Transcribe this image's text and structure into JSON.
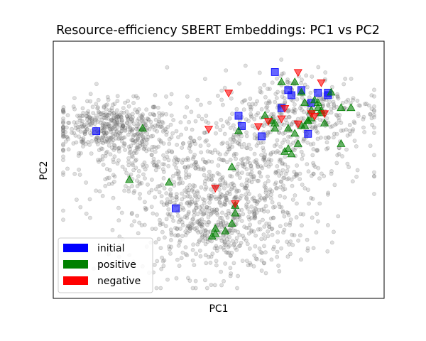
{
  "chart_data": {
    "type": "scatter",
    "title": "Resource-efficiency SBERT Embeddings: PC1 vs PC2",
    "xlabel": "PC1",
    "ylabel": "PC2",
    "xlim": [
      0,
      100
    ],
    "ylim": [
      0,
      100
    ],
    "ticks_shown": false,
    "grid": false,
    "legend_position": "lower-left",
    "legend": [
      {
        "label": "initial",
        "color": "#0000ff"
      },
      {
        "label": "positive",
        "color": "#008000"
      },
      {
        "label": "negative",
        "color": "#ff0000"
      }
    ],
    "background": {
      "name": "all embeddings",
      "color": "#808080",
      "marker": "circle",
      "clusters": [
        {
          "center": [
            17,
            67
          ],
          "spread": [
            9,
            5
          ],
          "count": 380
        },
        {
          "center": [
            27,
            57
          ],
          "spread": [
            12,
            9
          ],
          "count": 260
        },
        {
          "center": [
            49,
            29
          ],
          "spread": [
            13,
            10
          ],
          "count": 600
        },
        {
          "center": [
            58,
            52
          ],
          "spread": [
            15,
            11
          ],
          "count": 420
        },
        {
          "center": [
            75,
            73
          ],
          "spread": [
            12,
            8
          ],
          "count": 340
        }
      ]
    },
    "series": [
      {
        "name": "initial",
        "marker": "square",
        "color": "#0000ff",
        "points": [
          [
            13,
            65
          ],
          [
            37,
            35
          ],
          [
            56,
            71
          ],
          [
            57,
            67
          ],
          [
            63,
            63
          ],
          [
            67,
            88
          ],
          [
            71,
            81
          ],
          [
            72,
            79
          ],
          [
            69,
            74
          ],
          [
            75,
            81
          ],
          [
            78,
            76
          ],
          [
            77,
            64
          ],
          [
            80,
            80
          ],
          [
            83,
            80
          ],
          [
            83,
            79
          ]
        ]
      },
      {
        "name": "positive",
        "marker": "triangle-up",
        "color": "#008000",
        "points": [
          [
            27,
            66
          ],
          [
            23,
            46
          ],
          [
            35,
            45
          ],
          [
            54,
            51
          ],
          [
            56,
            65
          ],
          [
            64,
            71
          ],
          [
            66,
            69
          ],
          [
            67,
            66
          ],
          [
            70,
            57
          ],
          [
            73,
            64
          ],
          [
            74,
            60
          ],
          [
            71,
            58
          ],
          [
            72,
            56
          ],
          [
            71,
            66
          ],
          [
            73,
            84
          ],
          [
            75,
            80
          ],
          [
            76,
            76
          ],
          [
            77,
            69
          ],
          [
            78,
            73
          ],
          [
            79,
            77
          ],
          [
            80,
            76
          ],
          [
            81,
            73
          ],
          [
            78,
            70
          ],
          [
            80,
            74
          ],
          [
            81,
            72
          ],
          [
            82,
            68
          ],
          [
            84,
            80
          ],
          [
            87,
            74
          ],
          [
            90,
            74
          ],
          [
            87,
            60
          ],
          [
            77,
            69
          ],
          [
            76,
            67
          ],
          [
            55,
            33
          ],
          [
            54,
            29
          ],
          [
            52,
            26
          ],
          [
            49,
            25
          ],
          [
            49,
            27
          ],
          [
            55,
            36
          ],
          [
            48,
            24
          ],
          [
            75,
            67
          ],
          [
            67,
            68
          ],
          [
            69,
            84
          ]
        ]
      },
      {
        "name": "negative",
        "marker": "triangle-down",
        "color": "#ff0000",
        "points": [
          [
            53,
            80
          ],
          [
            47,
            66
          ],
          [
            49,
            43
          ],
          [
            55,
            37
          ],
          [
            62,
            67
          ],
          [
            65,
            69
          ],
          [
            69,
            70
          ],
          [
            70,
            74
          ],
          [
            74,
            88
          ],
          [
            74,
            68
          ],
          [
            78,
            72
          ],
          [
            79,
            71
          ],
          [
            81,
            84
          ],
          [
            82,
            72
          ]
        ]
      }
    ]
  }
}
